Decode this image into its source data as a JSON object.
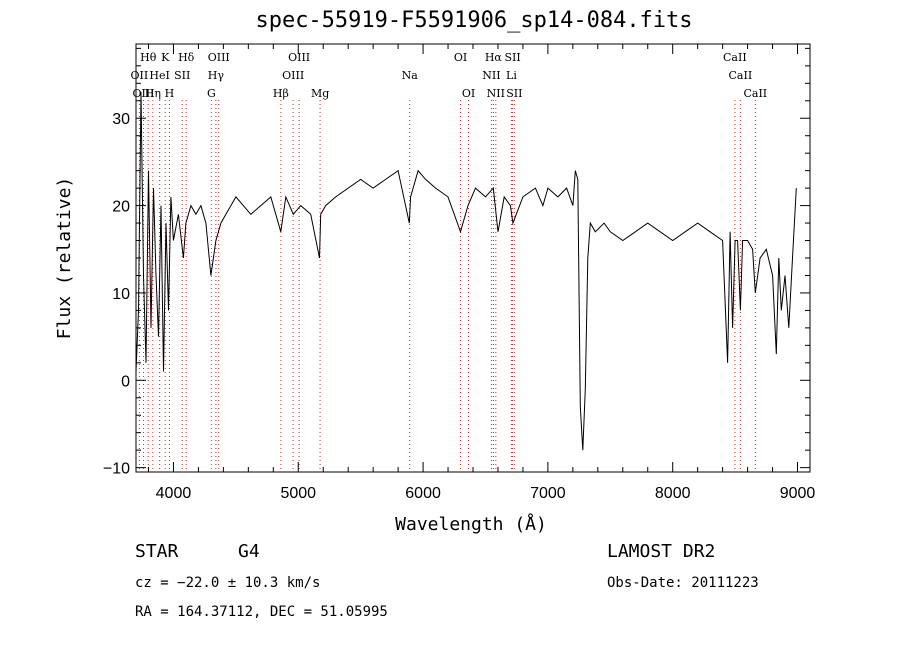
{
  "title": "spec-55919-F5591906_sp14-084.fits",
  "info": {
    "class": "STAR",
    "subclass": "G4",
    "survey": "LAMOST DR2",
    "cz": "cz = −22.0 ± 10.3 km/s",
    "obs_date": "Obs-Date: 20111223",
    "radec": "RA = 164.37112, DEC =  51.05995"
  },
  "chart_data": {
    "type": "line",
    "title": "spec-55919-F5591906_sp14-084.fits",
    "xlabel": "Wavelength (Å)",
    "ylabel": "Flux (relative)",
    "xlim": [
      3700,
      9100
    ],
    "ylim": [
      -10.5,
      38.5
    ],
    "xticks": [
      4000,
      5000,
      6000,
      7000,
      8000,
      9000
    ],
    "yticks": [
      -10,
      0,
      10,
      20,
      30
    ],
    "xtick_labels": [
      "4000",
      "5000",
      "6000",
      "7000",
      "8000",
      "9000"
    ],
    "ytick_labels": [
      "−10",
      "0",
      "10",
      "20",
      "30"
    ],
    "grid": false,
    "spectrum": {
      "x": [
        3700,
        3720,
        3740,
        3760,
        3780,
        3800,
        3820,
        3840,
        3860,
        3880,
        3900,
        3920,
        3940,
        3960,
        3980,
        4000,
        4040,
        4080,
        4100,
        4140,
        4180,
        4220,
        4260,
        4300,
        4340,
        4380,
        4420,
        4460,
        4500,
        4560,
        4620,
        4700,
        4780,
        4860,
        4900,
        4960,
        5020,
        5100,
        5170,
        5180,
        5220,
        5300,
        5400,
        5500,
        5600,
        5700,
        5800,
        5890,
        5900,
        5960,
        6020,
        6100,
        6200,
        6300,
        6360,
        6420,
        6500,
        6563,
        6600,
        6650,
        6700,
        6720,
        6800,
        6900,
        6960,
        7000,
        7080,
        7150,
        7200,
        7220,
        7240,
        7260,
        7280,
        7300,
        7320,
        7340,
        7380,
        7450,
        7500,
        7600,
        7700,
        7800,
        7900,
        8000,
        8100,
        8200,
        8300,
        8400,
        8440,
        8460,
        8480,
        8500,
        8520,
        8542,
        8560,
        8600,
        8640,
        8662,
        8700,
        8750,
        8800,
        8830,
        8850,
        8870,
        8900,
        8930,
        8960,
        8990
      ],
      "y": [
        1,
        8,
        33,
        12,
        2,
        24,
        6,
        22,
        12,
        5,
        20,
        1,
        18,
        8,
        21,
        16,
        19,
        14,
        18,
        20,
        19,
        20,
        18,
        12,
        16,
        18,
        19,
        20,
        21,
        20,
        19,
        20,
        21,
        17,
        21,
        19,
        20,
        19,
        14,
        19,
        20,
        21,
        22,
        23,
        22,
        23,
        24,
        18,
        21,
        24,
        23,
        22,
        21,
        17,
        20,
        22,
        21,
        22,
        17,
        21,
        20,
        18,
        21,
        22,
        20,
        22,
        21,
        22,
        20,
        24,
        23,
        -3,
        -8,
        -1,
        14,
        18,
        17,
        18,
        17,
        16,
        17,
        18,
        17,
        16,
        17,
        18,
        17,
        16,
        2,
        17,
        6,
        16,
        16,
        8,
        16,
        16,
        15,
        10,
        14,
        15,
        12,
        3,
        14,
        8,
        12,
        6,
        14,
        22
      ]
    },
    "lines": [
      {
        "label": "Hθ",
        "x": 3798,
        "row": 0
      },
      {
        "label": "K",
        "x": 3934,
        "row": 0
      },
      {
        "label": "Hδ",
        "x": 4102,
        "row": 0
      },
      {
        "label": "OIII",
        "x": 4363,
        "row": 0
      },
      {
        "label": "OIII",
        "x": 5007,
        "row": 0
      },
      {
        "label": "OI",
        "x": 6300,
        "row": 0
      },
      {
        "label": "Hα",
        "x": 6563,
        "row": 0
      },
      {
        "label": "SII",
        "x": 6717,
        "row": 0
      },
      {
        "label": "CaII",
        "x": 8498,
        "row": 0
      },
      {
        "label": "OII",
        "x": 3727,
        "row": 1
      },
      {
        "label": "HeI",
        "x": 3889,
        "row": 1
      },
      {
        "label": "SII",
        "x": 4070,
        "row": 1
      },
      {
        "label": "Hγ",
        "x": 4340,
        "row": 1
      },
      {
        "label": "OIII",
        "x": 4959,
        "row": 1
      },
      {
        "label": "Na",
        "x": 5893,
        "row": 1
      },
      {
        "label": "NII",
        "x": 6548,
        "row": 1
      },
      {
        "label": "Li",
        "x": 6708,
        "row": 1
      },
      {
        "label": "CaII",
        "x": 8542,
        "row": 1
      },
      {
        "label": "OIII",
        "x": 3760,
        "row": 2
      },
      {
        "label": "Hη",
        "x": 3835,
        "row": 2
      },
      {
        "label": "H",
        "x": 3968,
        "row": 2
      },
      {
        "label": "G",
        "x": 4304,
        "row": 2
      },
      {
        "label": "Hβ",
        "x": 4861,
        "row": 2
      },
      {
        "label": "Mg",
        "x": 5175,
        "row": 2
      },
      {
        "label": "OI",
        "x": 6364,
        "row": 2
      },
      {
        "label": "NII",
        "x": 6583,
        "row": 2
      },
      {
        "label": "SII",
        "x": 6731,
        "row": 2
      },
      {
        "label": "CaII",
        "x": 8662,
        "row": 2
      }
    ]
  }
}
